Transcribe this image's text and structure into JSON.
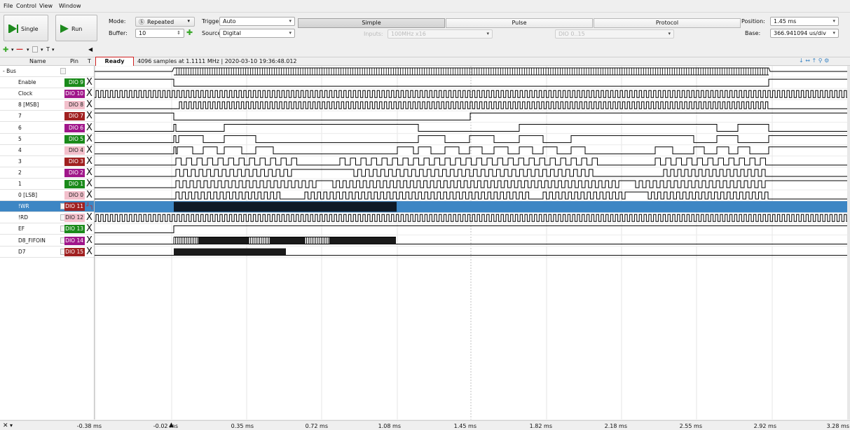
{
  "menu": {
    "file": "File",
    "control": "Control",
    "view": "View",
    "window": "Window"
  },
  "toolbar": {
    "single": "Single",
    "run": "Run",
    "mode_label": "Mode:",
    "mode_value": "Repeated",
    "trigger_label": "Trigger:",
    "trigger_value": "Auto",
    "buffer_label": "Buffer:",
    "buffer_value": "10",
    "source_label": "Source:",
    "source_value": "Digital",
    "tabs": [
      "Simple",
      "Pulse",
      "Protocol"
    ],
    "inputs_label": "Inputs:",
    "inputs_value": "100MHz x16",
    "dio_range": "DIO 0..15",
    "position_label": "Position:",
    "position_value": "1.45 ms",
    "base_label": "Base:",
    "base_value": "366.941094 us/div"
  },
  "table": {
    "name": "Name",
    "pin": "Pin",
    "t": "T"
  },
  "status": {
    "state": "Ready",
    "info": "4096 samples at 1.1111 MHz | 2020-03-10 19:36:48.012"
  },
  "rows": [
    {
      "name": "- Bus",
      "pin": "",
      "color": "",
      "trig": ""
    },
    {
      "name": "Enable",
      "pin": "DIO 9",
      "color": "#1a8a1a",
      "trig": "X"
    },
    {
      "name": "Clock",
      "pin": "DIO 10",
      "color": "#a0168a",
      "trig": "X"
    },
    {
      "name": "8 [MSB]",
      "pin": "DIO 8",
      "color": "#f3c0cc",
      "trig": "X"
    },
    {
      "name": "7",
      "pin": "DIO 7",
      "color": "#a02020",
      "trig": "X"
    },
    {
      "name": "6",
      "pin": "DIO 6",
      "color": "#a0168a",
      "trig": "X"
    },
    {
      "name": "5",
      "pin": "DIO 5",
      "color": "#1a8a1a",
      "trig": "X"
    },
    {
      "name": "4",
      "pin": "DIO 4",
      "color": "#f3c0cc",
      "trig": "X"
    },
    {
      "name": "3",
      "pin": "DIO 3",
      "color": "#a02020",
      "trig": "X"
    },
    {
      "name": "2",
      "pin": "DIO 2",
      "color": "#a0168a",
      "trig": "X"
    },
    {
      "name": "1",
      "pin": "DIO 1",
      "color": "#1a8a1a",
      "trig": "X"
    },
    {
      "name": "0 [LSB]",
      "pin": "DIO 0",
      "color": "#f3c0cc",
      "trig": "X"
    },
    {
      "name": "!WR",
      "pin": "DIO 11",
      "color": "#a02020",
      "trig": "┘┐"
    },
    {
      "name": "!RD",
      "pin": "DIO 12",
      "color": "#f3c0cc",
      "trig": "X"
    },
    {
      "name": "EF",
      "pin": "DIO 13",
      "color": "#1a8a1a",
      "trig": "X"
    },
    {
      "name": "D8_FIFOIN",
      "pin": "DIO 14",
      "color": "#a0168a",
      "trig": "X"
    },
    {
      "name": "D7",
      "pin": "DIO 15",
      "color": "#a02020",
      "trig": "X"
    }
  ],
  "time_axis": [
    "-0.38 ms",
    "-0.02 ms",
    "0.35 ms",
    "0.72 ms",
    "1.08 ms",
    "1.45 ms",
    "1.82 ms",
    "2.18 ms",
    "2.55 ms",
    "2.92 ms",
    "3.28 ms"
  ],
  "colors": {
    "selected_row": "#3d86c4",
    "wave": "#000000"
  }
}
